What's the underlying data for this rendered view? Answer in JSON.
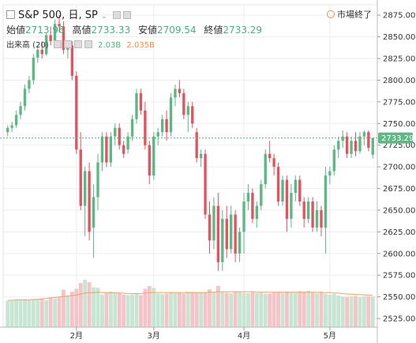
{
  "header": {
    "symbol": "S&P 500, 日, SP",
    "status": "市場終了",
    "open_label": "始値",
    "open_value": "2713.96",
    "high_label": "高値",
    "high_value": "2733.33",
    "low_label": "安値",
    "low_value": "2709.54",
    "close_label": "終値",
    "close_value": "2733.29",
    "volume_label": "出来高 (20)",
    "volume_value": "2.03B",
    "volume_ma_value": "2.035B"
  },
  "colors": {
    "up": "#5cb885",
    "down": "#e05561",
    "up_volume": "#c6e6d3",
    "down_volume": "#f5c4c8",
    "ma": "#e8a466",
    "last_price": "#5cb885"
  },
  "chart_data": {
    "type": "candlestick",
    "y_ticks": [
      "2525.00",
      "2550.00",
      "2575.00",
      "2600.00",
      "2625.00",
      "2650.00",
      "2675.00",
      "2700.00",
      "2725.00",
      "2750.00",
      "2775.00",
      "2800.00",
      "2825.00",
      "2850.00",
      "2875.00"
    ],
    "x_ticks": [
      "2月",
      "3月",
      "4月",
      "5月"
    ],
    "x_tick_index": [
      16,
      34,
      55,
      75
    ],
    "last_price": "2733.29",
    "ylim": [
      2515,
      2887
    ],
    "candles": [
      [
        2740,
        2748,
        2735,
        2745
      ],
      [
        2745,
        2752,
        2740,
        2748
      ],
      [
        2748,
        2765,
        2745,
        2760
      ],
      [
        2760,
        2775,
        2755,
        2770
      ],
      [
        2770,
        2795,
        2765,
        2790
      ],
      [
        2790,
        2805,
        2785,
        2800
      ],
      [
        2800,
        2830,
        2795,
        2826
      ],
      [
        2826,
        2840,
        2820,
        2835
      ],
      [
        2835,
        2845,
        2825,
        2830
      ],
      [
        2830,
        2855,
        2828,
        2852
      ],
      [
        2852,
        2862,
        2840,
        2845
      ],
      [
        2845,
        2870,
        2842,
        2865
      ],
      [
        2865,
        2875,
        2855,
        2862
      ],
      [
        2862,
        2868,
        2830,
        2835
      ],
      [
        2835,
        2845,
        2825,
        2840
      ],
      [
        2840,
        2845,
        2800,
        2805
      ],
      [
        2805,
        2810,
        2715,
        2720
      ],
      [
        2720,
        2740,
        2650,
        2655
      ],
      [
        2655,
        2700,
        2620,
        2695
      ],
      [
        2695,
        2705,
        2615,
        2625
      ],
      [
        2630,
        2680,
        2595,
        2665
      ],
      [
        2665,
        2715,
        2650,
        2705
      ],
      [
        2705,
        2740,
        2695,
        2735
      ],
      [
        2735,
        2740,
        2700,
        2705
      ],
      [
        2705,
        2740,
        2700,
        2735
      ],
      [
        2735,
        2750,
        2725,
        2745
      ],
      [
        2745,
        2750,
        2720,
        2725
      ],
      [
        2725,
        2730,
        2710,
        2715
      ],
      [
        2720,
        2740,
        2715,
        2735
      ],
      [
        2735,
        2760,
        2730,
        2755
      ],
      [
        2755,
        2790,
        2750,
        2785
      ],
      [
        2785,
        2790,
        2760,
        2765
      ],
      [
        2765,
        2775,
        2720,
        2725
      ],
      [
        2725,
        2730,
        2680,
        2690
      ],
      [
        2690,
        2740,
        2685,
        2735
      ],
      [
        2735,
        2745,
        2725,
        2740
      ],
      [
        2740,
        2760,
        2735,
        2755
      ],
      [
        2755,
        2765,
        2730,
        2740
      ],
      [
        2740,
        2785,
        2735,
        2780
      ],
      [
        2780,
        2795,
        2770,
        2790
      ],
      [
        2790,
        2800,
        2780,
        2785
      ],
      [
        2785,
        2790,
        2755,
        2760
      ],
      [
        2760,
        2775,
        2740,
        2770
      ],
      [
        2770,
        2775,
        2745,
        2750
      ],
      [
        2740,
        2745,
        2705,
        2710
      ],
      [
        2710,
        2720,
        2700,
        2715
      ],
      [
        2715,
        2720,
        2640,
        2645
      ],
      [
        2645,
        2660,
        2600,
        2615
      ],
      [
        2615,
        2665,
        2605,
        2655
      ],
      [
        2655,
        2670,
        2580,
        2590
      ],
      [
        2590,
        2650,
        2580,
        2640
      ],
      [
        2640,
        2655,
        2595,
        2605
      ],
      [
        2605,
        2655,
        2600,
        2645
      ],
      [
        2645,
        2650,
        2590,
        2600
      ],
      [
        2600,
        2630,
        2590,
        2625
      ],
      [
        2625,
        2670,
        2600,
        2660
      ],
      [
        2660,
        2680,
        2650,
        2670
      ],
      [
        2670,
        2675,
        2635,
        2640
      ],
      [
        2640,
        2660,
        2630,
        2655
      ],
      [
        2655,
        2685,
        2650,
        2680
      ],
      [
        2680,
        2720,
        2675,
        2715
      ],
      [
        2715,
        2730,
        2705,
        2710
      ],
      [
        2710,
        2715,
        2690,
        2700
      ],
      [
        2700,
        2705,
        2655,
        2660
      ],
      [
        2660,
        2690,
        2655,
        2685
      ],
      [
        2685,
        2690,
        2625,
        2640
      ],
      [
        2640,
        2680,
        2630,
        2670
      ],
      [
        2670,
        2690,
        2660,
        2685
      ],
      [
        2685,
        2690,
        2655,
        2660
      ],
      [
        2660,
        2665,
        2630,
        2640
      ],
      [
        2640,
        2665,
        2635,
        2660
      ],
      [
        2660,
        2665,
        2625,
        2630
      ],
      [
        2630,
        2660,
        2625,
        2650
      ],
      [
        2650,
        2655,
        2620,
        2630
      ],
      [
        2630,
        2700,
        2600,
        2690
      ],
      [
        2690,
        2700,
        2680,
        2695
      ],
      [
        2695,
        2725,
        2690,
        2720
      ],
      [
        2720,
        2735,
        2710,
        2730
      ],
      [
        2730,
        2742,
        2722,
        2735
      ],
      [
        2735,
        2740,
        2710,
        2715
      ],
      [
        2715,
        2735,
        2710,
        2730
      ],
      [
        2730,
        2740,
        2712,
        2718
      ],
      [
        2718,
        2740,
        2715,
        2735
      ],
      [
        2735,
        2742,
        2725,
        2740
      ],
      [
        2740,
        2742,
        2718,
        2722
      ],
      [
        2713.96,
        2733.33,
        2709.54,
        2733.29
      ]
    ],
    "volumes": [
      0.55,
      0.55,
      0.57,
      0.57,
      0.58,
      0.57,
      0.58,
      0.58,
      0.6,
      0.56,
      0.62,
      0.6,
      0.62,
      0.78,
      0.66,
      0.74,
      0.8,
      0.92,
      0.99,
      0.94,
      0.83,
      0.82,
      0.68,
      0.72,
      0.74,
      0.72,
      0.71,
      0.68,
      0.67,
      0.68,
      0.7,
      0.67,
      0.8,
      0.86,
      0.82,
      0.7,
      0.69,
      0.7,
      0.73,
      0.71,
      0.72,
      0.7,
      0.74,
      0.73,
      0.72,
      0.73,
      0.72,
      0.79,
      0.74,
      0.86,
      0.73,
      0.72,
      0.71,
      0.74,
      0.73,
      0.72,
      0.71,
      0.73,
      0.71,
      0.72,
      0.7,
      0.7,
      0.72,
      0.73,
      0.72,
      0.74,
      0.73,
      0.72,
      0.75,
      0.74,
      0.76,
      0.72,
      0.71,
      0.73,
      0.7,
      0.68,
      0.69,
      0.66,
      0.64,
      0.63,
      0.64,
      0.65,
      0.63,
      0.64,
      0.65,
      0.64
    ],
    "volume_ma": [
      0.56,
      0.56,
      0.57,
      0.57,
      0.57,
      0.57,
      0.58,
      0.58,
      0.59,
      0.6,
      0.61,
      0.62,
      0.63,
      0.64,
      0.65,
      0.66,
      0.67,
      0.69,
      0.71,
      0.72,
      0.72,
      0.73,
      0.72,
      0.72,
      0.72,
      0.72,
      0.71,
      0.71,
      0.7,
      0.7,
      0.7,
      0.7,
      0.71,
      0.72,
      0.72,
      0.72,
      0.72,
      0.72,
      0.72,
      0.72,
      0.72,
      0.72,
      0.72,
      0.72,
      0.72,
      0.72,
      0.72,
      0.73,
      0.73,
      0.74,
      0.74,
      0.74,
      0.74,
      0.74,
      0.74,
      0.74,
      0.74,
      0.74,
      0.73,
      0.73,
      0.73,
      0.73,
      0.73,
      0.73,
      0.73,
      0.73,
      0.73,
      0.73,
      0.73,
      0.73,
      0.73,
      0.73,
      0.73,
      0.73,
      0.72,
      0.72,
      0.71,
      0.71,
      0.7,
      0.69,
      0.69,
      0.68,
      0.68,
      0.67,
      0.67,
      0.66
    ]
  }
}
